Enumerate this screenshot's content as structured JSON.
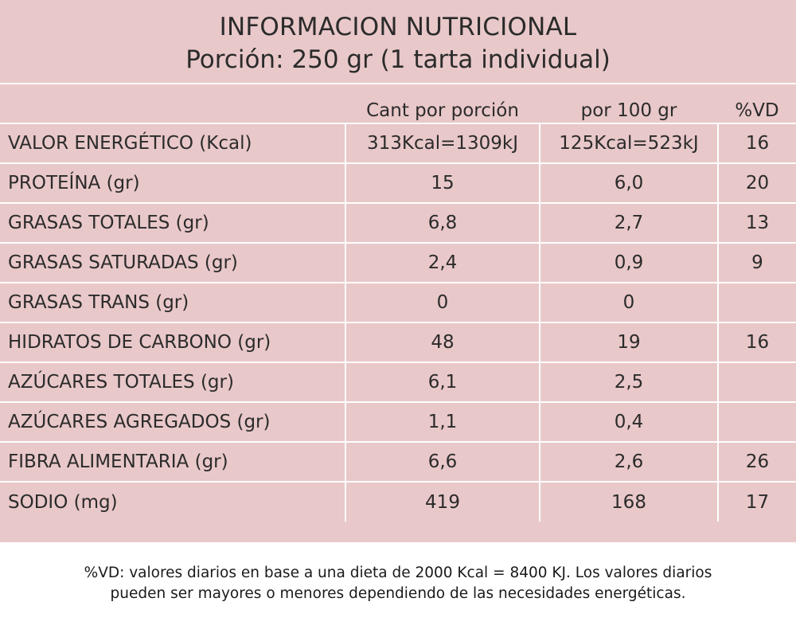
{
  "title": {
    "line1": "INFORMACION NUTRICIONAL",
    "line2": "Porción: 250 gr (1 tarta individual)"
  },
  "columns": {
    "name": "",
    "per_portion": "Cant por porción",
    "per_100g": "por 100 gr",
    "vd": "%VD"
  },
  "rows": [
    {
      "name": "VALOR ENERGÉTICO  (Kcal)",
      "per_portion": "313Kcal=1309kJ",
      "per_100g": "125Kcal=523kJ",
      "vd": "16"
    },
    {
      "name": "PROTEÍNA (gr)",
      "per_portion": "15",
      "per_100g": "6,0",
      "vd": "20"
    },
    {
      "name": "GRASAS TOTALES (gr)",
      "per_portion": "6,8",
      "per_100g": "2,7",
      "vd": "13"
    },
    {
      "name": "GRASAS SATURADAS (gr)",
      "per_portion": "2,4",
      "per_100g": "0,9",
      "vd": "9"
    },
    {
      "name": "GRASAS TRANS (gr)",
      "per_portion": "0",
      "per_100g": "0",
      "vd": ""
    },
    {
      "name": "HIDRATOS DE CARBONO (gr)",
      "per_portion": "48",
      "per_100g": "19",
      "vd": "16"
    },
    {
      "name": "AZÚCARES TOTALES (gr)",
      "per_portion": "6,1",
      "per_100g": "2,5",
      "vd": ""
    },
    {
      "name": "AZÚCARES AGREGADOS (gr)",
      "per_portion": "1,1",
      "per_100g": "0,4",
      "vd": ""
    },
    {
      "name": "FIBRA ALIMENTARIA (gr)",
      "per_portion": "6,6",
      "per_100g": "2,6",
      "vd": "26"
    },
    {
      "name": "SODIO (mg)",
      "per_portion": "419",
      "per_100g": "168",
      "vd": "17"
    }
  ],
  "footnote": {
    "line1": "%VD:  valores diarios en base a una dieta de 2000 Kcal = 8400 KJ. Los valores diarios",
    "line2": "pueden ser mayores o menores dependiendo de las necesidades energéticas."
  },
  "colors": {
    "panel_background": "#e9c8c9",
    "grid_lines": "#ffffff",
    "text": "#2b2b2b"
  }
}
